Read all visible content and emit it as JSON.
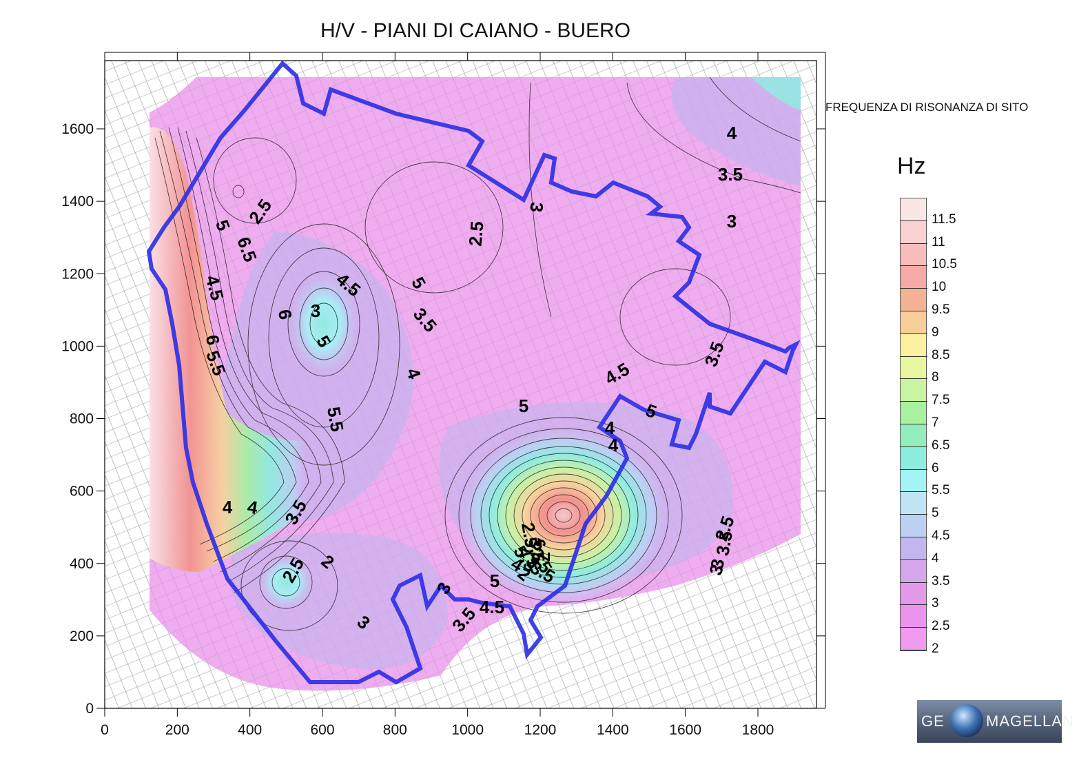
{
  "map": {
    "title": "H/V - PIANI DI CAIANO - BUERO",
    "x_ticks": [
      "0",
      "200",
      "400",
      "600",
      "800",
      "1000",
      "1200",
      "1400",
      "1600",
      "1800"
    ],
    "y_ticks": [
      "0",
      "200",
      "400",
      "600",
      "800",
      "1000",
      "1200",
      "1400",
      "1600"
    ],
    "contour_labels": [
      "2.5",
      "2.5",
      "3",
      "3.5",
      "4",
      "3",
      "3.5",
      "4.5",
      "5",
      "4",
      "4",
      "5",
      "5",
      "3.5",
      "4",
      "4.5",
      "5",
      "5.5",
      "6",
      "6.5",
      "6",
      "5.5",
      "4.5",
      "5",
      "4",
      "4",
      "3.5",
      "2.5",
      "2",
      "3",
      "3",
      "3.5",
      "4.5",
      "5",
      "3",
      "3.5",
      "2.5",
      "3",
      "2.5",
      "3.5",
      "2.5",
      "2",
      "5",
      "7",
      "6",
      "5",
      "4.5",
      "4",
      "3.5",
      "3"
    ],
    "colors": {
      "boundary": "#2a2ee6",
      "hot": "#f29a8c",
      "base": "#e88ee8"
    }
  },
  "legend": {
    "title": "FREQUENZA DI RISONANZA DI SITO",
    "unit": "Hz",
    "labels": [
      "11.5",
      "11",
      "10.5",
      "10",
      "9.5",
      "9",
      "8.5",
      "8",
      "7.5",
      "7",
      "6.5",
      "6",
      "5.5",
      "5",
      "4.5",
      "4",
      "3.5",
      "3",
      "2.5",
      "2"
    ],
    "colors": [
      "#fbe6e6",
      "#fbd0d0",
      "#f8bdbd",
      "#f6a9a6",
      "#f3b293",
      "#f9cf99",
      "#fbf1a0",
      "#e6f7a0",
      "#c9f4a1",
      "#a7f19f",
      "#93ecbb",
      "#8deee0",
      "#a4f4f6",
      "#bfe4f6",
      "#bcd0f4",
      "#c2b6ee",
      "#d6a6ec",
      "#e398ea",
      "#eb94ee",
      "#f09af0"
    ]
  },
  "logo": {
    "left": "GE",
    "right": "MAGELLAN"
  }
}
